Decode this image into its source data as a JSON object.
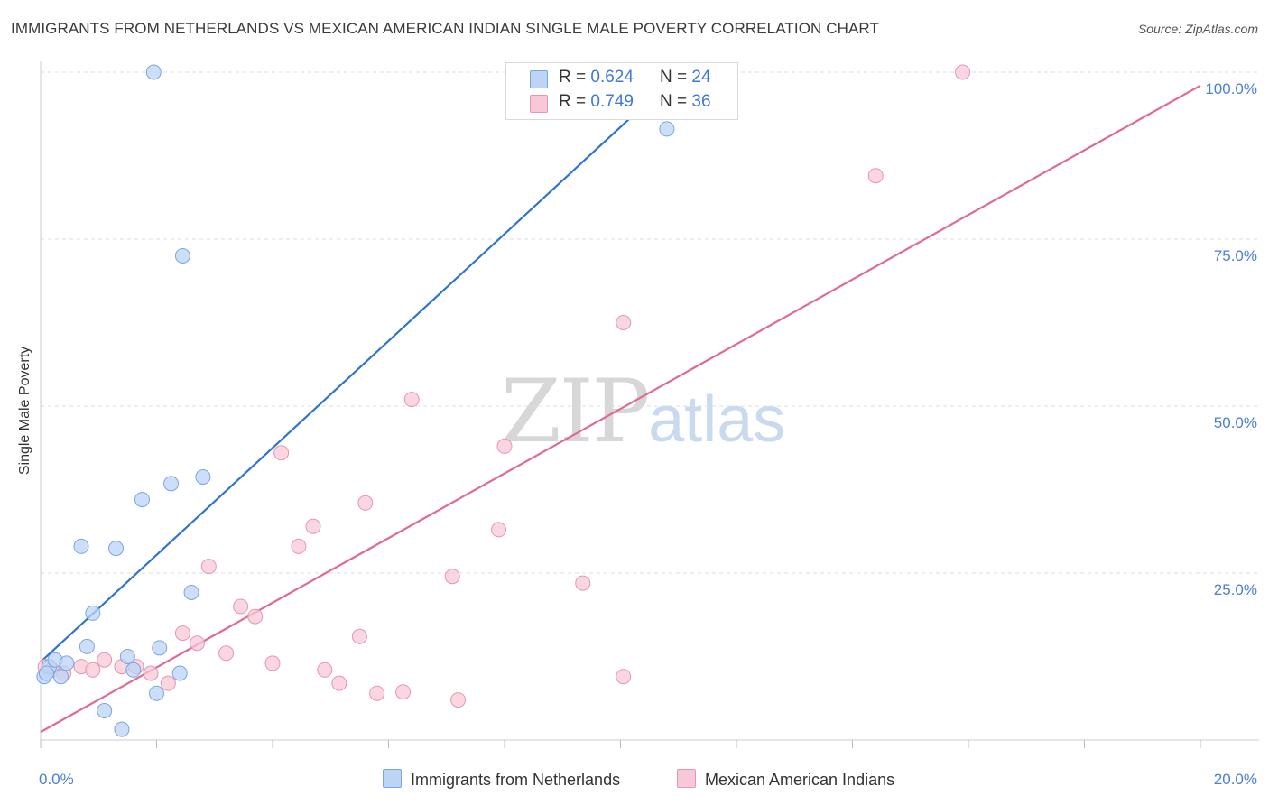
{
  "header": {
    "title": "IMMIGRANTS FROM NETHERLANDS VS MEXICAN AMERICAN INDIAN SINGLE MALE POVERTY CORRELATION CHART",
    "source": "Source: ZipAtlas.com"
  },
  "watermark": {
    "zip": "ZIP",
    "atlas": "atlas"
  },
  "legend": {
    "series1": {
      "r_label": "R = ",
      "r_value": "0.624",
      "n_label": "N = ",
      "n_value": "24"
    },
    "series2": {
      "r_label": "R = ",
      "r_value": "0.749",
      "n_label": "N = ",
      "n_value": "36"
    }
  },
  "colors": {
    "blue_fill": "#bcd4f5",
    "blue_stroke": "#7aa6e0",
    "blue_line": "#2f74d0",
    "pink_fill": "#f8c8d6",
    "pink_stroke": "#e895af",
    "pink_line": "#e06a93",
    "tick_text": "#4a7fd4",
    "grid": "#dddddd"
  },
  "chart_data": {
    "type": "scatter",
    "title": "IMMIGRANTS FROM NETHERLANDS VS MEXICAN AMERICAN INDIAN SINGLE MALE POVERTY CORRELATION CHART",
    "xlabel": "",
    "ylabel": "Single Male Poverty",
    "xlim": [
      0,
      20
    ],
    "ylim": [
      0,
      100
    ],
    "x_tick_labels": [
      "0.0%",
      "20.0%"
    ],
    "y_ticks": [
      25,
      50,
      75,
      100
    ],
    "y_tick_labels": [
      "25.0%",
      "50.0%",
      "75.0%",
      "100.0%"
    ],
    "grid": true,
    "legend_position": "top-center",
    "series": [
      {
        "name": "Immigrants from Netherlands",
        "color": "#bcd4f5",
        "r": 0.624,
        "n": 24,
        "trend": {
          "x": [
            0,
            10.7
          ],
          "y": [
            11.7,
            97.4
          ]
        },
        "points": [
          [
            0.06,
            9.5
          ],
          [
            0.15,
            11.0
          ],
          [
            0.25,
            12.0
          ],
          [
            0.35,
            9.5
          ],
          [
            0.7,
            29.0
          ],
          [
            0.8,
            14.0
          ],
          [
            0.9,
            19.0
          ],
          [
            1.1,
            4.4
          ],
          [
            1.3,
            28.7
          ],
          [
            1.4,
            1.6
          ],
          [
            1.5,
            12.5
          ],
          [
            1.6,
            10.5
          ],
          [
            1.75,
            36.0
          ],
          [
            1.95,
            100.0
          ],
          [
            2.0,
            7.0
          ],
          [
            2.05,
            13.8
          ],
          [
            2.25,
            38.4
          ],
          [
            2.4,
            10.0
          ],
          [
            2.45,
            72.5
          ],
          [
            2.6,
            22.1
          ],
          [
            2.8,
            39.4
          ],
          [
            10.8,
            91.5
          ],
          [
            0.45,
            11.5
          ],
          [
            0.1,
            10.0
          ]
        ]
      },
      {
        "name": "Mexican American Indians",
        "color": "#f8c8d6",
        "r": 0.749,
        "n": 36,
        "trend": {
          "x": [
            0,
            20
          ],
          "y": [
            1.2,
            98.0
          ]
        },
        "points": [
          [
            0.08,
            11.0
          ],
          [
            0.2,
            10.5
          ],
          [
            0.4,
            10.0
          ],
          [
            0.7,
            11.0
          ],
          [
            0.9,
            10.5
          ],
          [
            1.1,
            12.0
          ],
          [
            1.4,
            11.0
          ],
          [
            1.65,
            11.0
          ],
          [
            1.9,
            10.0
          ],
          [
            2.2,
            8.5
          ],
          [
            2.45,
            16.0
          ],
          [
            2.7,
            14.5
          ],
          [
            2.9,
            26.0
          ],
          [
            3.2,
            13.0
          ],
          [
            3.45,
            20.0
          ],
          [
            3.7,
            18.5
          ],
          [
            4.0,
            11.5
          ],
          [
            4.15,
            43.0
          ],
          [
            4.45,
            29.0
          ],
          [
            4.7,
            32.0
          ],
          [
            4.9,
            10.5
          ],
          [
            5.15,
            8.5
          ],
          [
            5.5,
            15.5
          ],
          [
            5.6,
            35.5
          ],
          [
            5.8,
            7.0
          ],
          [
            6.25,
            7.2
          ],
          [
            6.4,
            51.0
          ],
          [
            7.1,
            24.5
          ],
          [
            7.2,
            6.0
          ],
          [
            7.9,
            31.5
          ],
          [
            8.0,
            44.0
          ],
          [
            9.35,
            23.5
          ],
          [
            10.05,
            62.5
          ],
          [
            10.05,
            9.5
          ],
          [
            14.4,
            84.5
          ],
          [
            15.9,
            100.0
          ]
        ]
      }
    ]
  },
  "bottom_legend": {
    "series1_label": "Immigrants from Netherlands",
    "series2_label": "Mexican American Indians"
  }
}
